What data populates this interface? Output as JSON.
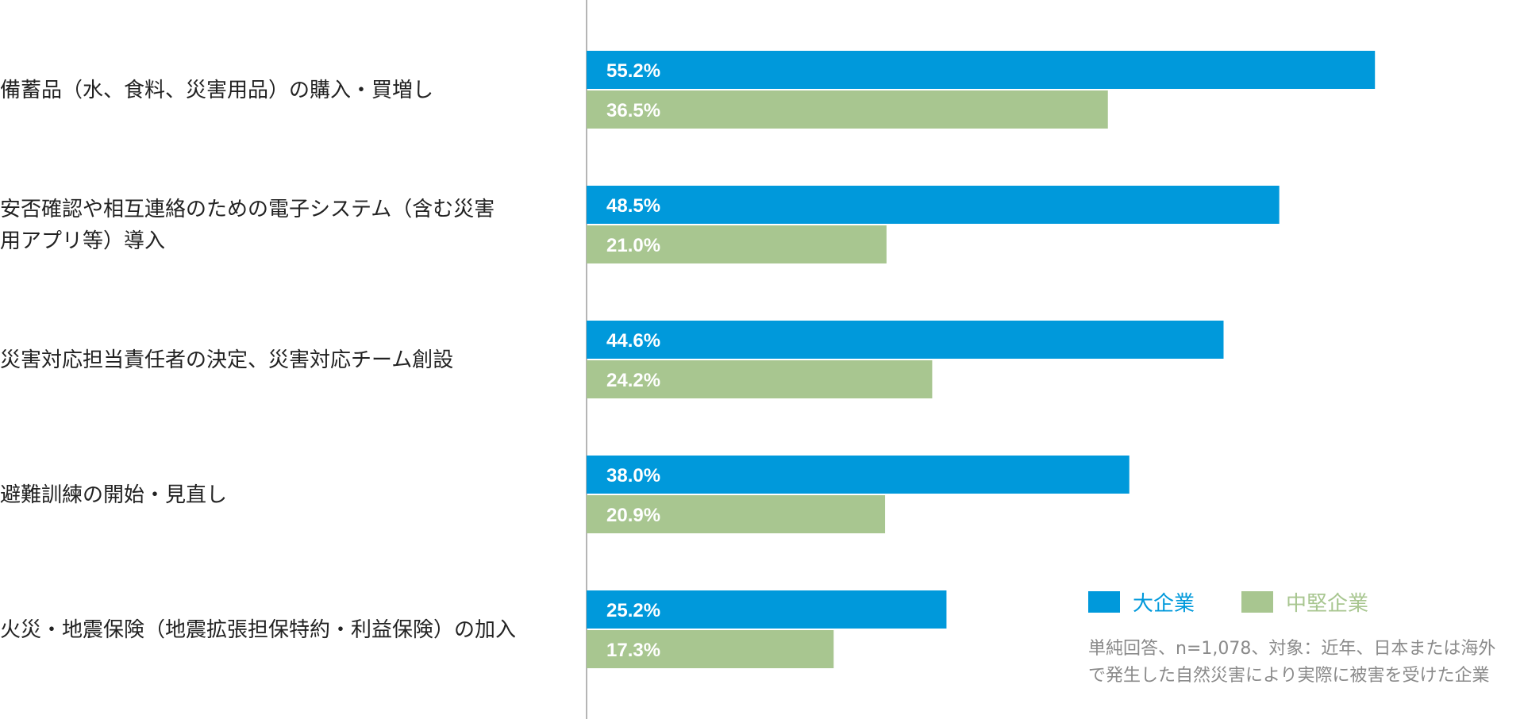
{
  "chart_data": {
    "type": "bar",
    "orientation": "horizontal",
    "categories": [
      [
        "備蓄品（水、食料、災害用品）の購入・買増し"
      ],
      [
        "安否確認や相互連絡のための電子システム（含む災害",
        "用アプリ等）導入"
      ],
      [
        "災害対応担当責任者の決定、災害対応チーム創設"
      ],
      [
        "避難訓練の開始・見直し"
      ],
      [
        "火災・地震保険（地震拡張担保特約・利益保険）の加入"
      ]
    ],
    "series": [
      {
        "name": "大企業",
        "color": "#0099db",
        "values": [
          55.2,
          48.5,
          44.6,
          38.0,
          25.2
        ],
        "labels": [
          "55.2%",
          "48.5%",
          "44.6%",
          "38.0%",
          "25.2%"
        ]
      },
      {
        "name": "中堅企業",
        "color": "#a8c690",
        "values": [
          36.5,
          21.0,
          24.2,
          20.9,
          17.3
        ],
        "labels": [
          "36.5%",
          "21.0%",
          "24.2%",
          "20.9%",
          "17.3%"
        ]
      }
    ],
    "xlim": [
      0,
      58.8
    ],
    "grid": false,
    "legend_position": "bottom-right",
    "note": [
      "単純回答、n=1,078、対象：近年、日本または海外",
      "で発生した自然災害により実際に被害を受けた企業"
    ],
    "axis_color": "#b5b5b5"
  }
}
